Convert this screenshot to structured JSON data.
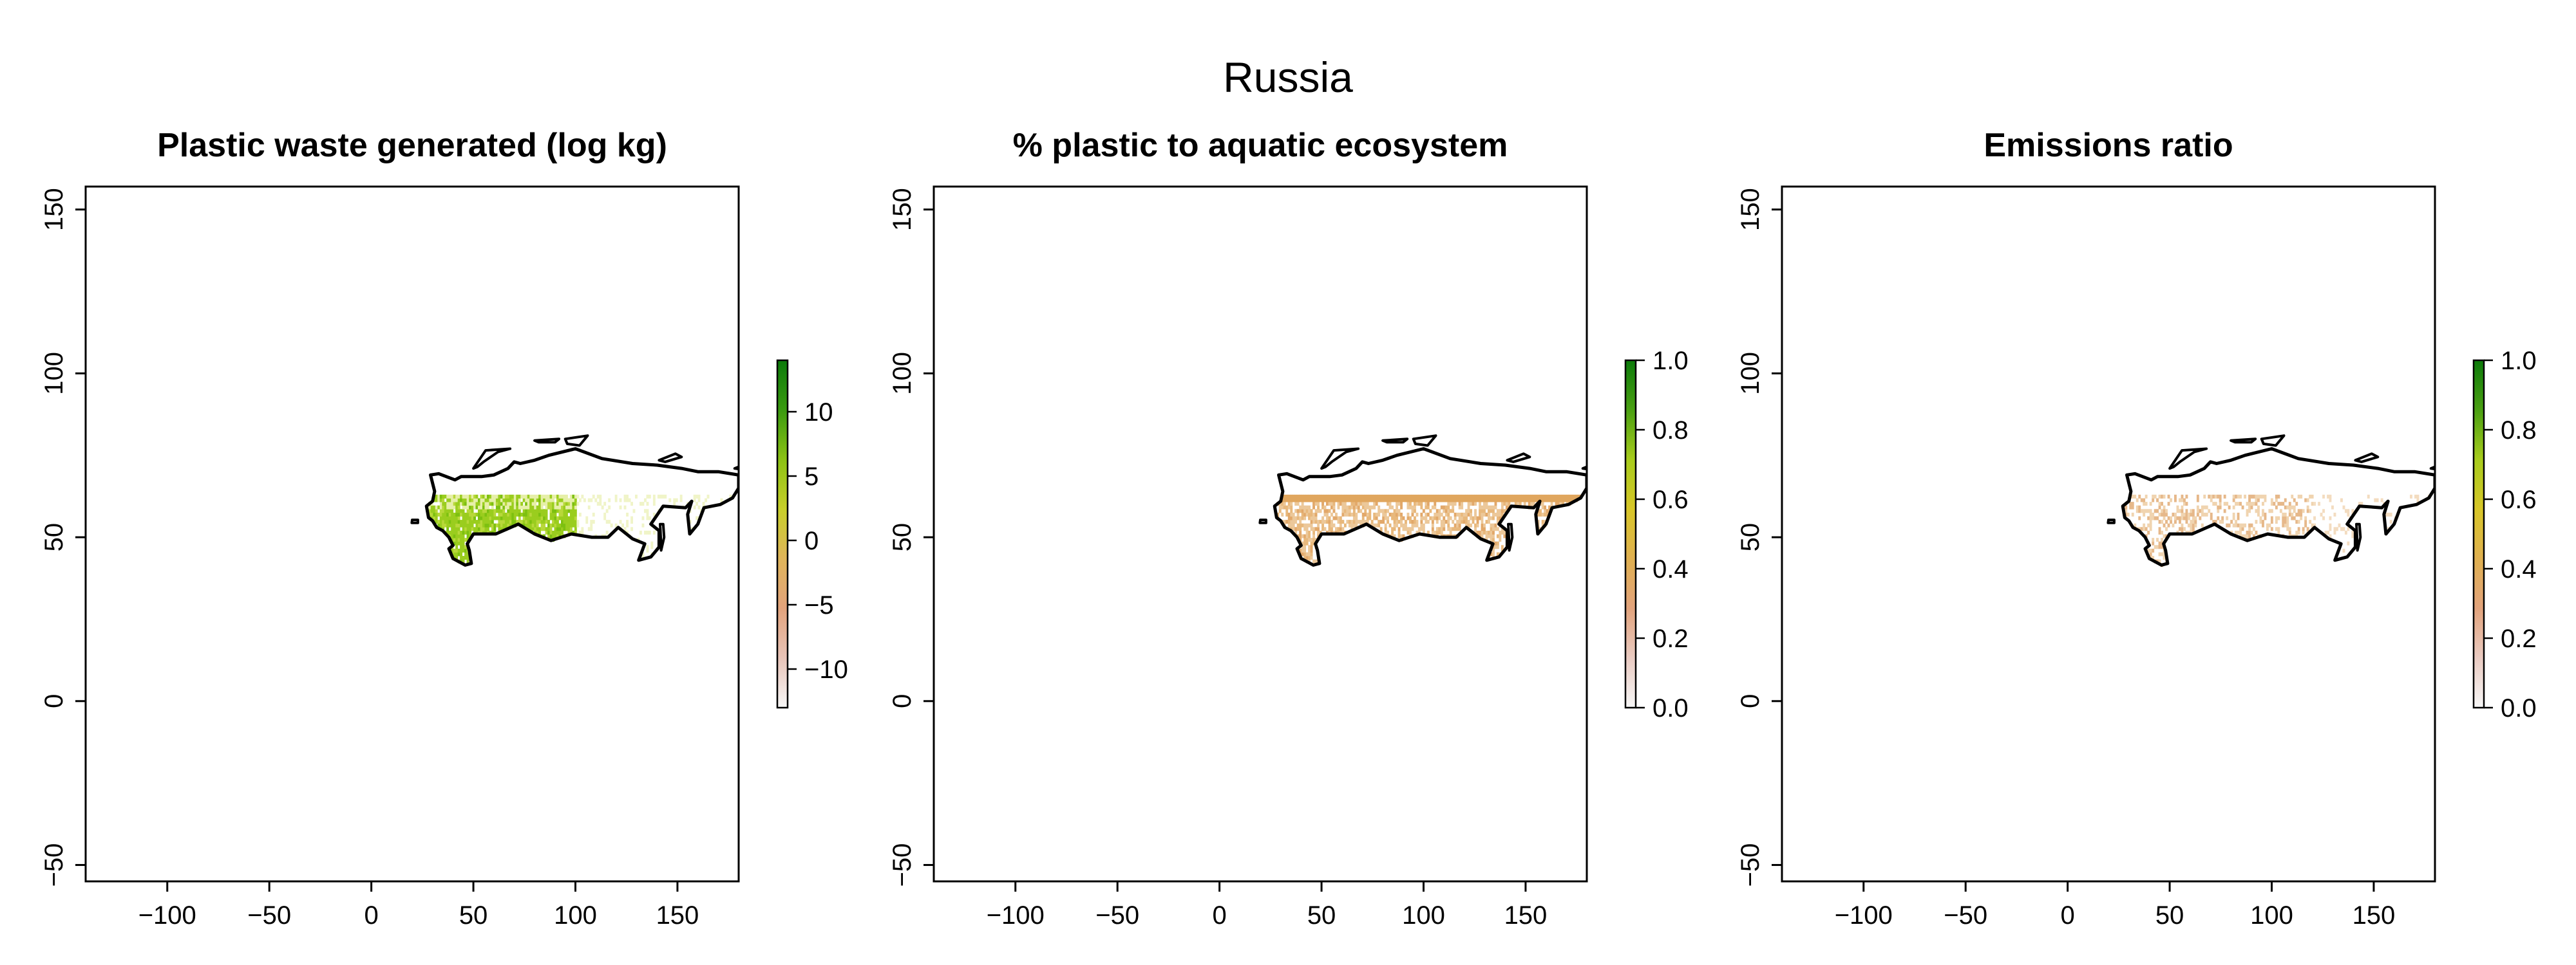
{
  "figure_title": "Russia",
  "chart_data": [
    {
      "type": "heatmap",
      "title": "Plastic waste generated (log kg)",
      "region": "Russia",
      "xlim": [
        -140,
        180
      ],
      "ylim": [
        -55,
        157
      ],
      "x_ticks": [
        -100,
        -50,
        0,
        50,
        100,
        150
      ],
      "y_ticks": [
        -50,
        0,
        50,
        100,
        150
      ],
      "colorbar": {
        "range": [
          -13,
          14
        ],
        "ticks": [
          -10,
          -5,
          0,
          5,
          10
        ],
        "colors": [
          "#f7f7f7",
          "#e8c4b8",
          "#e2a37c",
          "#dfb55a",
          "#c8cf2a",
          "#8cc214",
          "#3a9a10",
          "#0c7a0a"
        ]
      },
      "fill_description_value_range": [
        0,
        6
      ],
      "dominant_fill": "#9acd1e"
    },
    {
      "type": "heatmap",
      "title": "% plastic to aquatic ecosystem",
      "region": "Russia",
      "xlim": [
        -140,
        180
      ],
      "ylim": [
        -55,
        157
      ],
      "x_ticks": [
        -100,
        -50,
        0,
        50,
        100,
        150
      ],
      "y_ticks": [
        -50,
        0,
        50,
        100,
        150
      ],
      "colorbar": {
        "range": [
          0,
          1
        ],
        "ticks": [
          0.0,
          0.2,
          0.4,
          0.6,
          0.8,
          1.0
        ],
        "tick_labels": [
          "0.0",
          "0.2",
          "0.4",
          "0.6",
          "0.8",
          "1.0"
        ],
        "colors": [
          "#f7f7f7",
          "#eacbc2",
          "#e2a37c",
          "#e0b050",
          "#d8c628",
          "#a8cc1c",
          "#4aa012",
          "#0c7a0a"
        ]
      },
      "dominant_fill": "#e0a65e"
    },
    {
      "type": "heatmap",
      "title": "Emissions ratio",
      "region": "Russia",
      "xlim": [
        -140,
        180
      ],
      "ylim": [
        -55,
        157
      ],
      "x_ticks": [
        -100,
        -50,
        0,
        50,
        100,
        150
      ],
      "y_ticks": [
        -50,
        0,
        50,
        100,
        150
      ],
      "colorbar": {
        "range": [
          0,
          1
        ],
        "ticks": [
          0.0,
          0.2,
          0.4,
          0.6,
          0.8,
          1.0
        ],
        "tick_labels": [
          "0.0",
          "0.2",
          "0.4",
          "0.6",
          "0.8",
          "1.0"
        ],
        "colors": [
          "#f7f7f7",
          "#eacbc2",
          "#e2a37c",
          "#e0b050",
          "#d8c628",
          "#a8cc1c",
          "#4aa012",
          "#0c7a0a"
        ]
      },
      "dominant_fill": "#ecc89a"
    }
  ]
}
